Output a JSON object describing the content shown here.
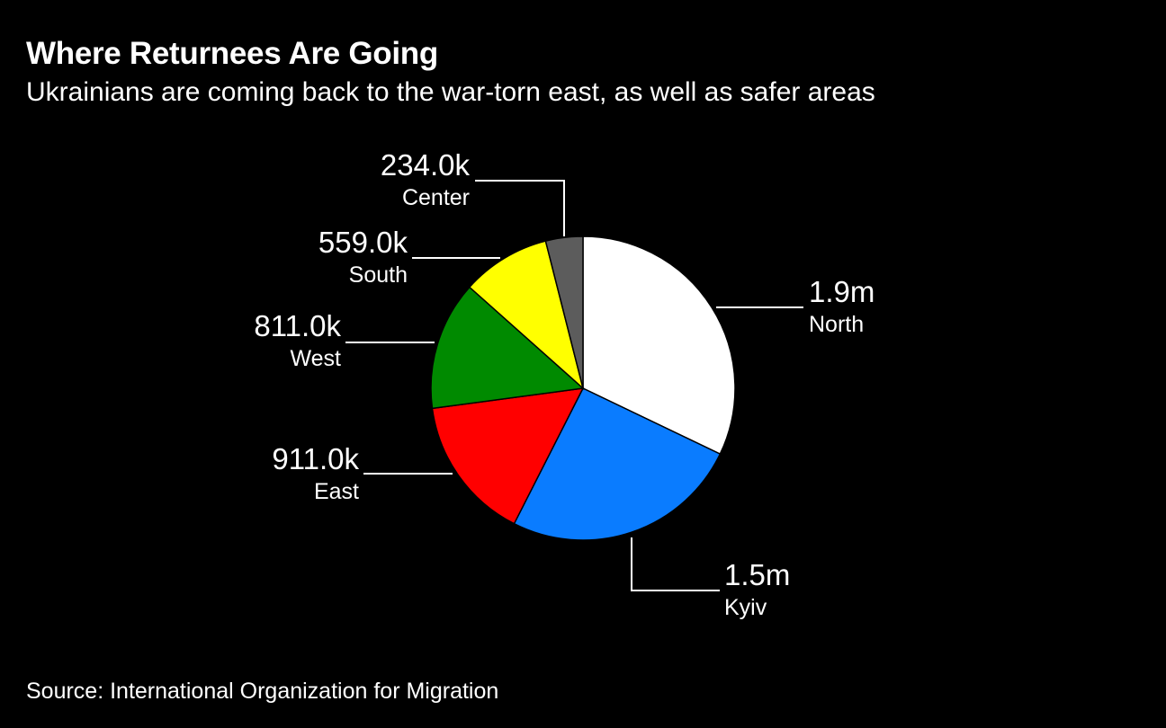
{
  "title": "Where Returnees Are Going",
  "subtitle": "Ukrainians are coming back to the war-torn east, as well as safer areas",
  "source": "Source: International Organization for Migration",
  "chart_data": {
    "type": "pie",
    "slices": [
      {
        "name": "North",
        "value": 1900000,
        "value_label": "1.9m",
        "color": "#ffffff"
      },
      {
        "name": "Kyiv",
        "value": 1500000,
        "value_label": "1.5m",
        "color": "#0a7cff"
      },
      {
        "name": "East",
        "value": 911000,
        "value_label": "911.0k",
        "color": "#ff0000"
      },
      {
        "name": "West",
        "value": 811000,
        "value_label": "811.0k",
        "color": "#008a00"
      },
      {
        "name": "South",
        "value": 559000,
        "value_label": "559.0k",
        "color": "#ffff00"
      },
      {
        "name": "Center",
        "value": 234000,
        "value_label": "234.0k",
        "color": "#5c5c5c"
      }
    ],
    "start": "12 o'clock",
    "direction": "clockwise",
    "background": "#000000",
    "text_color": "#ffffff"
  }
}
